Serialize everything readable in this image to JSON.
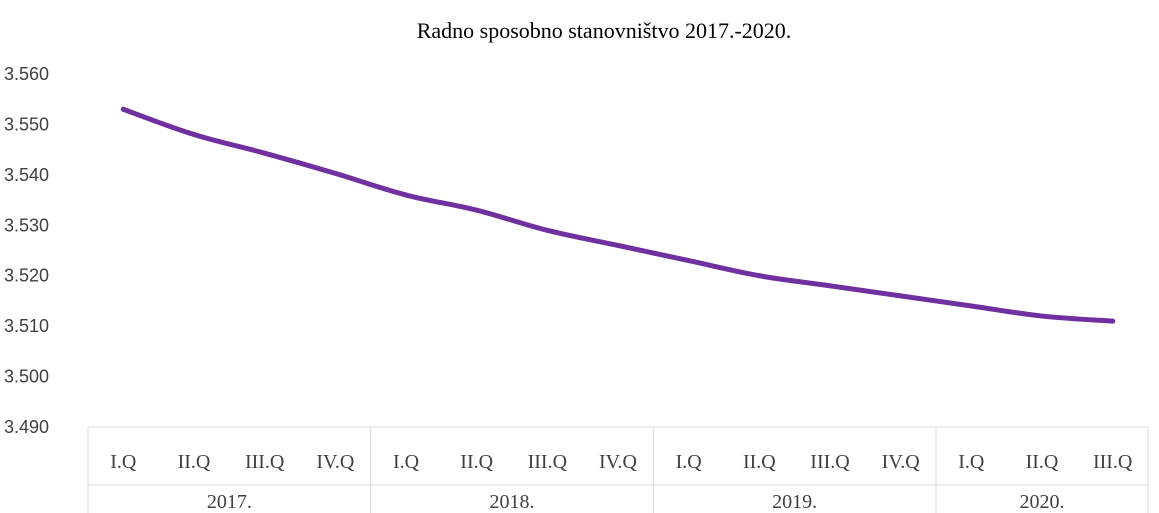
{
  "chart_data": {
    "type": "line",
    "title": "Radno sposobno stanovništvo 2017.-2020.",
    "ylim": [
      3.49,
      3.56
    ],
    "y_ticks": [
      "3.560",
      "3.550",
      "3.540",
      "3.530",
      "3.520",
      "3.510",
      "3.500",
      "3.490"
    ],
    "categories": [
      "I.Q",
      "II.Q",
      "III.Q",
      "IV.Q",
      "I.Q",
      "II.Q",
      "III.Q",
      "IV.Q",
      "I.Q",
      "II.Q",
      "III.Q",
      "IV.Q",
      "I.Q",
      "II.Q",
      "III.Q"
    ],
    "year_groups": [
      {
        "label": "2017.",
        "count": 4
      },
      {
        "label": "2018.",
        "count": 4
      },
      {
        "label": "2019.",
        "count": 4
      },
      {
        "label": "2020.",
        "count": 3
      }
    ],
    "series": [
      {
        "color": "#7030a0",
        "values": [
          3.553,
          3.548,
          3.5443,
          3.5403,
          3.536,
          3.533,
          3.529,
          3.526,
          3.523,
          3.52,
          3.518,
          3.516,
          3.514,
          3.512,
          3.511
        ]
      }
    ],
    "grid": false,
    "legend": "none"
  }
}
